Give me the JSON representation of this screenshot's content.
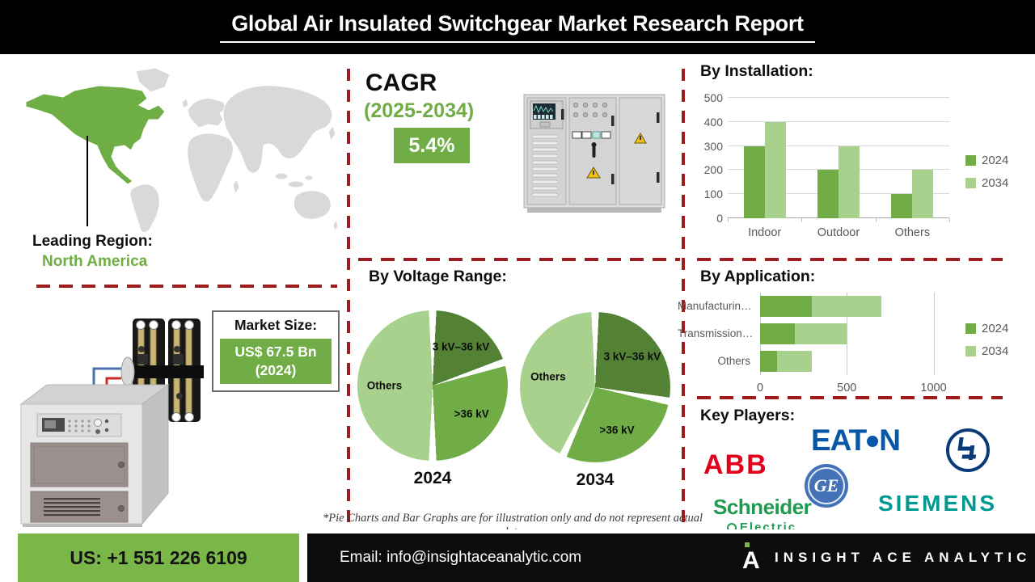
{
  "header": {
    "title": "Global Air Insulated Switchgear Market Research Report"
  },
  "map": {
    "highlight_region": "North America"
  },
  "leading_region": {
    "label": "Leading Region:",
    "value": "North America"
  },
  "cagr": {
    "label": "CAGR",
    "period": "(2025-2034)",
    "value": "5.4%"
  },
  "market_size": {
    "label": "Market Size:",
    "value": "US$ 67.5 Bn",
    "year": "(2024)"
  },
  "footnote": "*Pie Charts and Bar Graphs are for illustration only and do not represent actual data",
  "key_players": {
    "title": "Key Players:",
    "companies": [
      "EATON",
      "ABB",
      "GE",
      "L&T",
      "Schneider Electric",
      "SIEMENS"
    ]
  },
  "logos": {
    "eaton_left": "EAT",
    "eaton_right": "N",
    "abb": "ABB",
    "ge": "GE",
    "schneider": "Schneider",
    "schneider_sub": "Electric",
    "siemens": "SIEMENS"
  },
  "footer": {
    "phone": "US: +1 551 226 6109",
    "email": "Email: info@insightaceanalytic.com",
    "brand": "INSIGHT ACE ANALYTIC"
  },
  "colors": {
    "accent_green": "#70ad47",
    "light_green": "#a9d18e",
    "dark_green": "#548235",
    "dash_red": "#9e1b1e",
    "footer_green": "#7ab648"
  },
  "chart_data": [
    {
      "id": "installation",
      "type": "bar",
      "title": "By Installation:",
      "categories": [
        "Indoor",
        "Outdoor",
        "Others"
      ],
      "series": [
        {
          "name": "2024",
          "values": [
            300,
            200,
            100
          ],
          "color": "#70ad47"
        },
        {
          "name": "2034",
          "values": [
            400,
            300,
            200
          ],
          "color": "#a9d18e"
        }
      ],
      "ylim": [
        0,
        500
      ],
      "yticks": [
        0,
        100,
        200,
        300,
        400,
        500
      ],
      "grid": true,
      "legend_position": "right"
    },
    {
      "id": "voltage",
      "type": "pie",
      "title": "By Voltage Range:",
      "pies": [
        {
          "caption": "2024",
          "slices": [
            {
              "label": "3 kV–36 kV",
              "value": 20,
              "color": "#548235"
            },
            {
              "label": ">36 kV",
              "value": 30,
              "color": "#70ad47"
            },
            {
              "label": "Others",
              "value": 50,
              "color": "#a9d18e"
            }
          ]
        },
        {
          "caption": "2034",
          "slices": [
            {
              "label": "3 kV–36 kV",
              "value": 28,
              "color": "#548235"
            },
            {
              "label": ">36 kV",
              "value": 29,
              "color": "#70ad47"
            },
            {
              "label": "Others",
              "value": 43,
              "color": "#a9d18e"
            }
          ]
        }
      ]
    },
    {
      "id": "application",
      "type": "stacked-hbar",
      "title": "By Application:",
      "categories": [
        "Manufacturin…",
        "Transmission…",
        "Others"
      ],
      "series": [
        {
          "name": "2024",
          "values": [
            300,
            200,
            100
          ],
          "color": "#70ad47"
        },
        {
          "name": "2034",
          "values": [
            400,
            300,
            200
          ],
          "color": "#a9d18e"
        }
      ],
      "xlim": [
        0,
        1100
      ],
      "xticks": [
        0,
        500,
        1000
      ],
      "grid": true,
      "legend_position": "right"
    }
  ]
}
